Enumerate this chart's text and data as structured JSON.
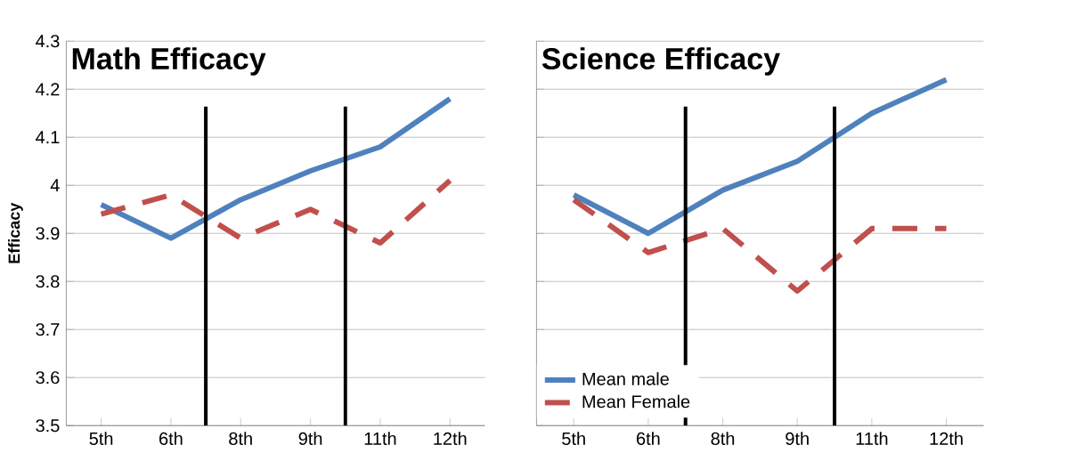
{
  "chart_data": [
    {
      "type": "line",
      "title": "Math Efficacy",
      "ylabel": "Efficacy",
      "categories": [
        "5th",
        "6th",
        "8th",
        "9th",
        "11th",
        "12th"
      ],
      "series": [
        {
          "color": "#4f81bd",
          "values": [
            3.96,
            3.89,
            3.97,
            4.03,
            4.08,
            4.18
          ],
          "line_style": "solid"
        },
        {
          "color": "#c0504d",
          "values": [
            3.94,
            3.98,
            3.89,
            3.95,
            3.88,
            4.01
          ],
          "line_style": "dashed"
        }
      ],
      "ylim": [
        3.5,
        4.3
      ],
      "yticks": [
        3.5,
        3.6,
        3.7,
        3.8,
        3.9,
        4,
        4.1,
        4.2,
        4.3
      ],
      "grid": "y",
      "marker": "none"
    },
    {
      "type": "line",
      "title": "Science Efficacy",
      "categories": [
        "5th",
        "6th",
        "8th",
        "9th",
        "11th",
        "12th"
      ],
      "series": [
        {
          "name": "Mean male",
          "color": "#4f81bd",
          "values": [
            3.98,
            3.9,
            3.99,
            4.05,
            4.15,
            4.22
          ],
          "line_style": "solid"
        },
        {
          "name": "Mean Female",
          "color": "#c0504d",
          "values": [
            3.97,
            3.86,
            3.91,
            3.78,
            3.91,
            3.91
          ],
          "line_style": "dashed"
        }
      ],
      "ylim": [
        3.5,
        4.3
      ],
      "yticks": [
        3.5,
        3.6,
        3.7,
        3.8,
        3.9,
        4,
        4.1,
        4.2,
        4.3
      ],
      "grid": "y",
      "marker": "none",
      "tick_labels": "x",
      "legend": "bottom left"
    }
  ]
}
